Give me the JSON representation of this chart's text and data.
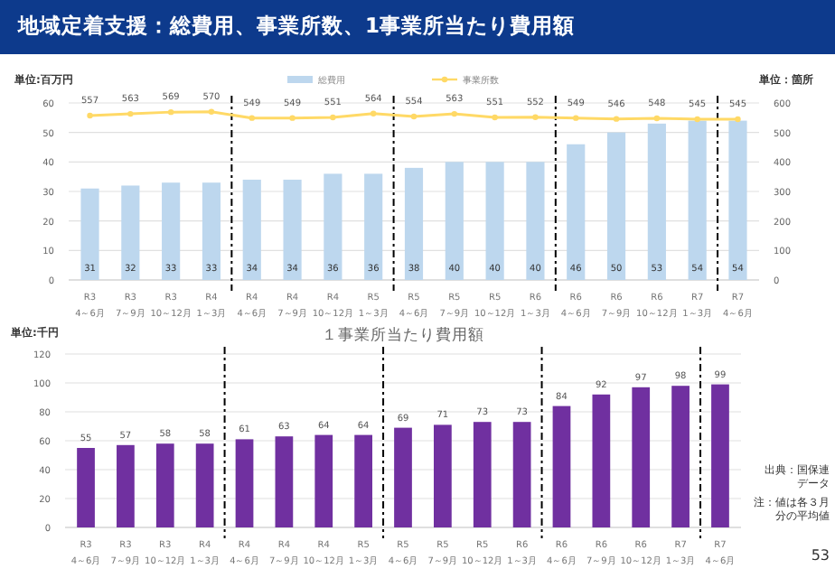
{
  "chart_data": [
    {
      "type": "bar",
      "title": "地域定着支援：総費用、事業所数、1事業所当たり費用額",
      "ylabel": "単位:百万円",
      "y2label": "単位：箇所",
      "categories": [
        "R3\n4～6月",
        "R3\n7～9月",
        "R3\n10～12月",
        "R4\n1～3月",
        "R4\n4～6月",
        "R4\n7～9月",
        "R4\n10～12月",
        "R5\n1～3月",
        "R5\n4～6月",
        "R5\n7～9月",
        "R5\n10～12月",
        "R6\n1～3月",
        "R6\n4～6月",
        "R6\n7～9月",
        "R6\n10～12月",
        "R7\n1～3月",
        "R7\n4～6月"
      ],
      "series": [
        {
          "name": "総費用",
          "type": "bar",
          "color": "#bdd7ee",
          "values": [
            31,
            32,
            33,
            33,
            34,
            34,
            36,
            36,
            38,
            40,
            40,
            40,
            46,
            50,
            53,
            54,
            54
          ]
        },
        {
          "name": "事業所数",
          "type": "line",
          "axis": "y2",
          "color": "#ffd966",
          "marker": "circle",
          "values": [
            557,
            563,
            569,
            570,
            549,
            549,
            551,
            564,
            554,
            563,
            551,
            552,
            549,
            546,
            548,
            545,
            545
          ]
        }
      ],
      "ylim": [
        0,
        60
      ],
      "yticks": [
        0,
        10,
        20,
        30,
        40,
        50,
        60
      ],
      "y2lim": [
        0,
        600
      ],
      "y2ticks": [
        0,
        100,
        200,
        300,
        400,
        500,
        600
      ],
      "grid": "y",
      "legend": "top",
      "data_labels": true
    },
    {
      "type": "bar",
      "title": "１事業所当たり費用額",
      "ylabel": "単位:千円",
      "categories": [
        "R3\n4～6月",
        "R3\n7～9月",
        "R3\n10～12月",
        "R4\n1～3月",
        "R4\n4～6月",
        "R4\n7～9月",
        "R4\n10～12月",
        "R5\n1～3月",
        "R5\n4～6月",
        "R5\n7～9月",
        "R5\n10～12月",
        "R6\n1～3月",
        "R6\n4～6月",
        "R6\n7～9月",
        "R6\n10～12月",
        "R7\n1～3月",
        "R7\n4～6月"
      ],
      "series": [
        {
          "type": "bar",
          "color": "#7030a0",
          "values": [
            55,
            57,
            58,
            58,
            61,
            63,
            64,
            64,
            69,
            71,
            73,
            73,
            84,
            92,
            97,
            98,
            99
          ]
        }
      ],
      "ylim": [
        0,
        120
      ],
      "yticks": [
        0,
        20,
        40,
        60,
        80,
        100,
        120
      ],
      "grid": "y",
      "data_labels": true,
      "annotations": [
        "出典：国保連データ",
        "注：値は各３月分の平均値",
        "53"
      ]
    }
  ]
}
